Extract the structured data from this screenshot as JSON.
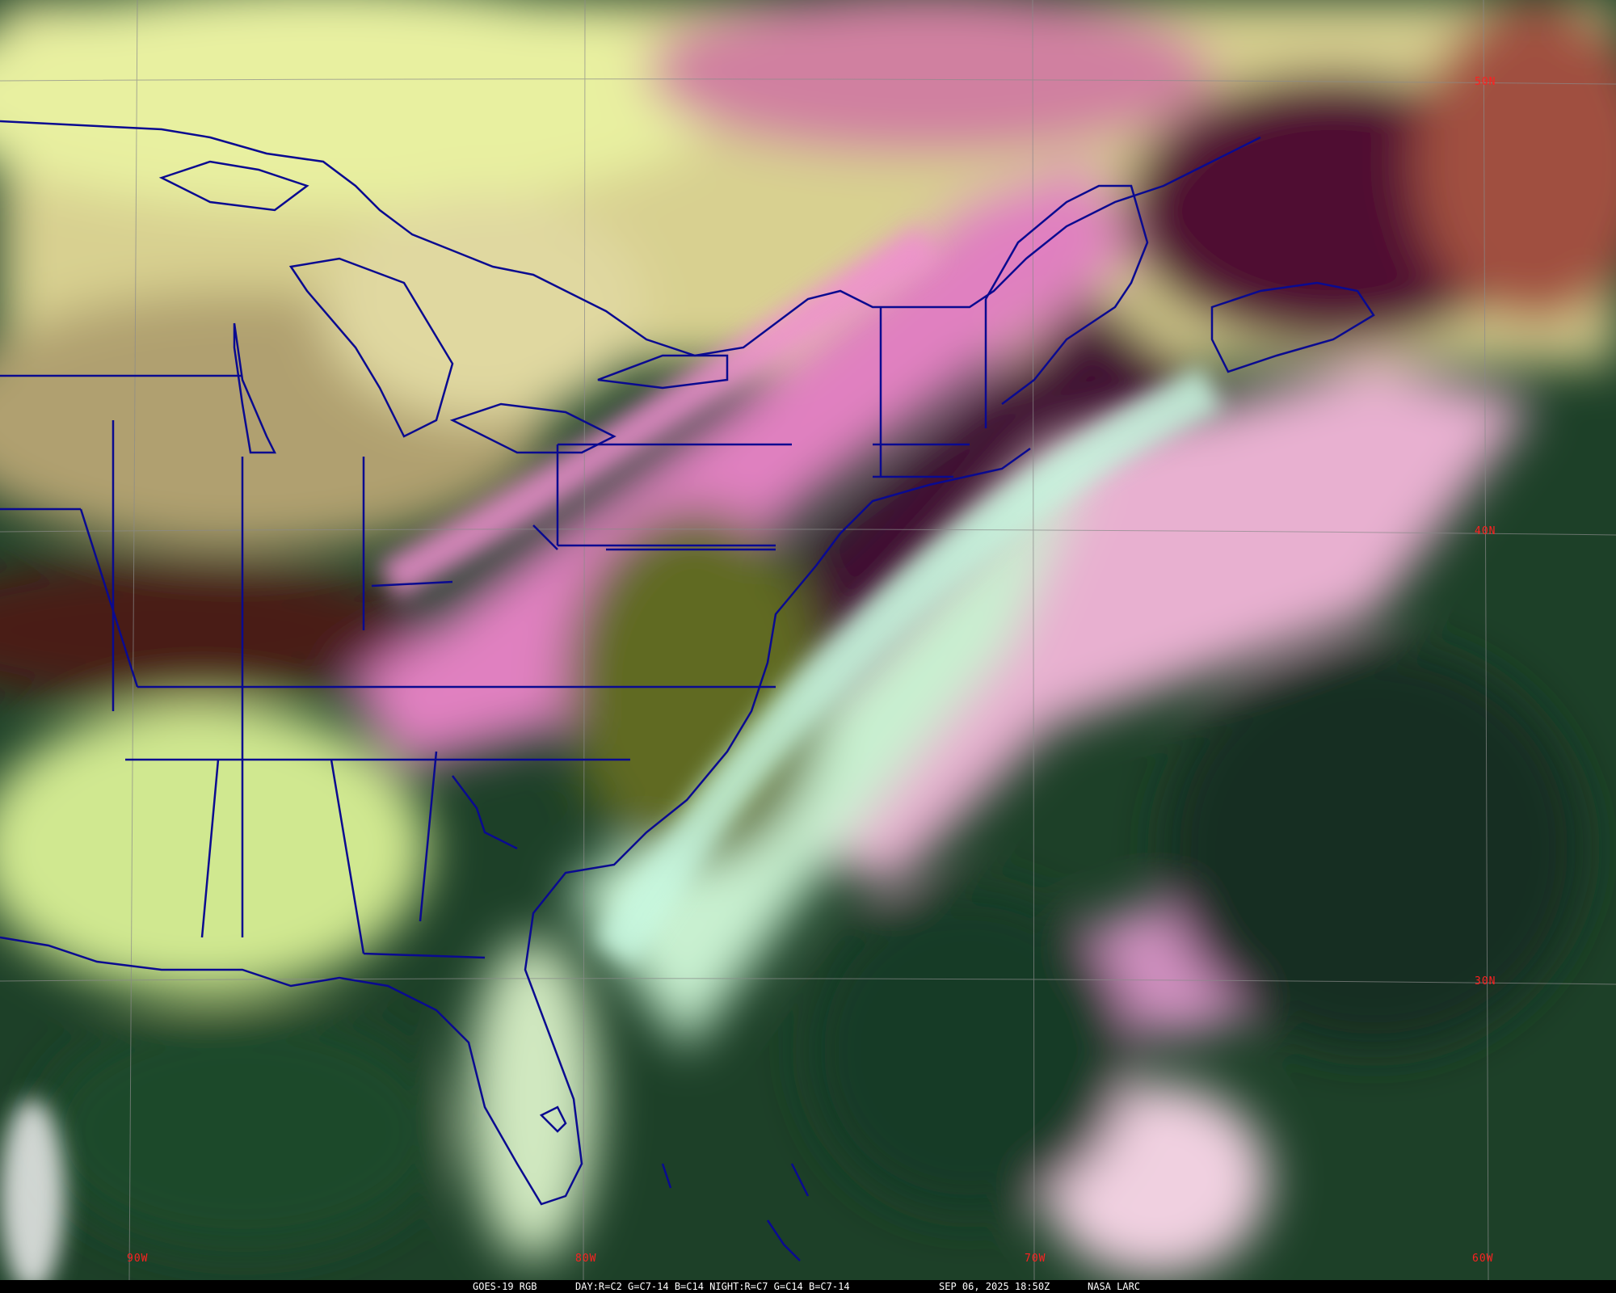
{
  "caption": {
    "product": "GOES-19 RGB",
    "recipe": "DAY:R=C2 G=C7-14 B=C14 NIGHT:R=C7 G=C14 B=C7-14",
    "datetime": "SEP 06, 2025 18:50Z",
    "source": "NASA LARC"
  },
  "grid": {
    "latitude_labels": [
      "50N",
      "40N",
      "30N"
    ],
    "longitude_labels": [
      "90W",
      "80W",
      "70W",
      "60W"
    ]
  },
  "colors": {
    "label": "#ff2020",
    "boundaries": "#0a0a90",
    "grid": "#8a8a8a"
  }
}
